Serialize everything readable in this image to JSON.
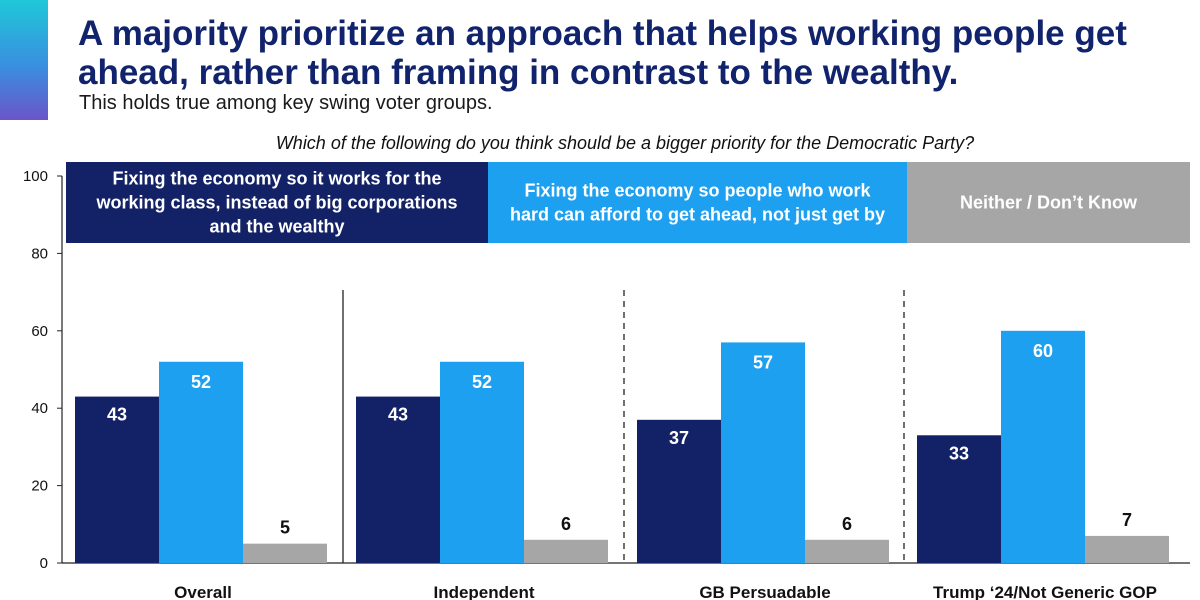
{
  "header": {
    "title": "A majority prioritize an approach that helps working people get ahead, rather than framing in contrast to the wealthy.",
    "subtitle": "This holds true among key swing voter groups.",
    "question": "Which of the following do you think should be a bigger priority for the Democratic Party?"
  },
  "colors": {
    "accent_gradient": [
      "#1ec8d8",
      "#3a8fe0",
      "#6a55c8"
    ],
    "title": "#12236e"
  },
  "chart_data": {
    "type": "bar",
    "title": "",
    "xlabel": "",
    "ylabel": "",
    "ylim": [
      0,
      100
    ],
    "yticks": [
      0,
      20,
      40,
      60,
      80,
      100
    ],
    "categories": [
      "Overall",
      "Independent",
      "GB Persuadable",
      "Trump ‘24/Not Generic GOP"
    ],
    "series": [
      {
        "name": "Fixing the economy so it works for the working class, instead of big corporations and the wealthy",
        "legend_lines": [
          "Fixing the economy so it works for the",
          "working class, instead of big corporations",
          "and the wealthy"
        ],
        "color": "#132266",
        "label_color": "#ffffff",
        "values": [
          43,
          43,
          37,
          33
        ]
      },
      {
        "name": "Fixing the economy so people who work hard can afford to get ahead, not just get by",
        "legend_lines": [
          "Fixing the economy so people who work",
          "hard can afford to get ahead, not just get by"
        ],
        "color": "#1ea0f0",
        "label_color": "#ffffff",
        "values": [
          52,
          52,
          57,
          60
        ]
      },
      {
        "name": "Neither / Don’t Know",
        "legend_lines": [
          "Neither / Don’t Know"
        ],
        "color": "#a6a6a6",
        "label_color": "#111111",
        "values": [
          5,
          6,
          6,
          7
        ]
      }
    ],
    "separators": [
      "solid",
      "dashed",
      "dashed"
    ],
    "grid": false,
    "legend_position": "top"
  }
}
